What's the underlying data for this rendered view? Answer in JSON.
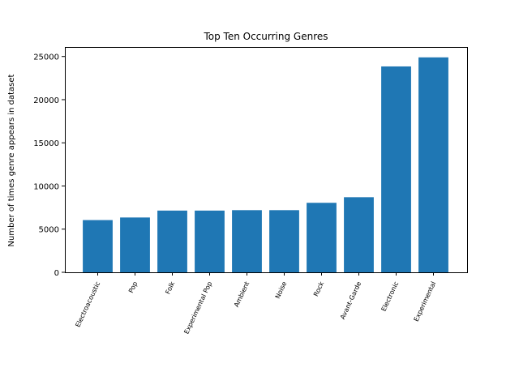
{
  "chart_data": {
    "type": "bar",
    "title": "Top Ten Occurring Genres",
    "xlabel": "",
    "ylabel": "Number of times genre appears in dataset",
    "categories": [
      "Electroacoustic",
      "Pop",
      "Folk",
      "Experimental Pop",
      "Ambient",
      "Noise",
      "Rock",
      "Avant-Garde",
      "Electronic",
      "Experimental"
    ],
    "values": [
      6050,
      6350,
      7150,
      7150,
      7200,
      7200,
      8050,
      8700,
      23850,
      24900
    ],
    "ylim": [
      0,
      26100
    ],
    "yticks": [
      0,
      5000,
      10000,
      15000,
      20000,
      25000
    ],
    "ytick_labels": [
      "0",
      "5000",
      "10000",
      "15000",
      "20000",
      "25000"
    ],
    "bar_color": "#1f77b4",
    "grid": false,
    "legend": "none"
  }
}
